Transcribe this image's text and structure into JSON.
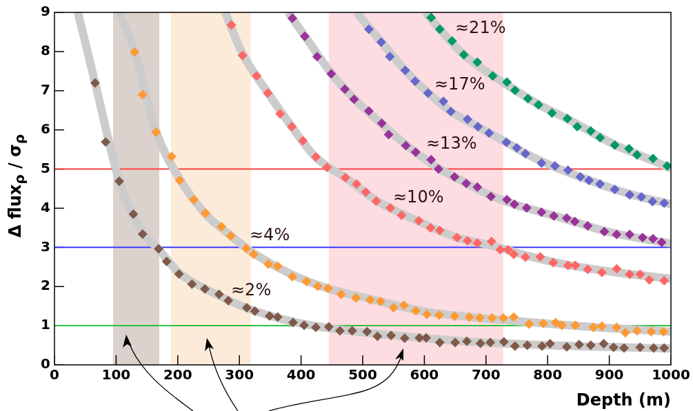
{
  "chart_data": {
    "type": "scatter",
    "xlabel": "Depth (m)",
    "ylabel": "Δ flux$_{ρ}$ / σ$_{ρ}$",
    "xlim": [
      0,
      1000
    ],
    "xticks": [
      0,
      100,
      200,
      300,
      400,
      500,
      600,
      700,
      800,
      900,
      1000
    ],
    "ylim": [
      0,
      9
    ],
    "yticks": [
      0,
      1,
      2,
      3,
      4,
      5,
      6,
      7,
      8,
      9
    ],
    "grid": false,
    "legend": false,
    "marker": "diamond",
    "bands": [
      {
        "axis": "x",
        "from": 95,
        "to": 170,
        "color": "#dbd2cd"
      },
      {
        "axis": "x",
        "from": 189,
        "to": 319,
        "color": "#fdebda"
      },
      {
        "axis": "x",
        "from": 445,
        "to": 728,
        "color": "#fddde1"
      }
    ],
    "ref_lines": [
      {
        "axis": "y",
        "value": 5,
        "color": "#ff4040"
      },
      {
        "axis": "y",
        "value": 3,
        "color": "#3a3aff"
      },
      {
        "axis": "y",
        "value": 1,
        "color": "#30c040"
      }
    ],
    "annotations": [
      "≈2%",
      "≈4%",
      "≈10%",
      "≈13%",
      "≈17%",
      "≈21%"
    ],
    "series": [
      {
        "type": "line",
        "marker": "none",
        "color": "#cccccc",
        "x": [
          38,
          66,
          105,
          143,
          169,
          202,
          244,
          312,
          387,
          463,
          546,
          650,
          770,
          890,
          1000
        ],
        "values": [
          9,
          7.2,
          4.7,
          3.4,
          2.95,
          2.35,
          1.95,
          1.45,
          1.1,
          0.9,
          0.76,
          0.62,
          0.52,
          0.46,
          0.42
        ]
      },
      {
        "type": "line",
        "marker": "none",
        "color": "#cccccc",
        "x": [
          105,
          130,
          165,
          203,
          245,
          286,
          323,
          386,
          444,
          512,
          604,
          690,
          793,
          888,
          1000
        ],
        "values": [
          9,
          8.0,
          5.95,
          4.75,
          3.85,
          3.3,
          2.85,
          2.3,
          1.95,
          1.68,
          1.35,
          1.2,
          1.06,
          0.95,
          0.85
        ]
      },
      {
        "type": "line",
        "marker": "none",
        "color": "#cccccc",
        "x": [
          277,
          305,
          346,
          385,
          424,
          472,
          522,
          591,
          653,
          709,
          764,
          833,
          912,
          1000
        ],
        "values": [
          9,
          7.95,
          6.95,
          6.08,
          5.3,
          4.78,
          4.2,
          3.66,
          3.25,
          3.05,
          2.8,
          2.55,
          2.36,
          2.2
        ]
      },
      {
        "type": "line",
        "marker": "none",
        "color": "#cccccc",
        "x": [
          379,
          406,
          449,
          486,
          531,
          570,
          623,
          668,
          708,
          746,
          790,
          844,
          892,
          954,
          1000
        ],
        "values": [
          9,
          8.4,
          7.45,
          6.8,
          6.15,
          5.62,
          5.02,
          4.64,
          4.32,
          4.1,
          3.9,
          3.65,
          3.42,
          3.22,
          3.1
        ]
      },
      {
        "type": "line",
        "marker": "none",
        "color": "#cccccc",
        "x": [
          490,
          530,
          569,
          606,
          643,
          687,
          733,
          764,
          812,
          853,
          909,
          952,
          1000
        ],
        "values": [
          9,
          8.25,
          7.52,
          6.95,
          6.47,
          6.08,
          5.68,
          5.4,
          5.05,
          4.8,
          4.48,
          4.28,
          4.1
        ]
      },
      {
        "type": "line",
        "marker": "none",
        "color": "#cccccc",
        "x": [
          602,
          625,
          664,
          711,
          747,
          785,
          832,
          870,
          909,
          945,
          1000
        ],
        "values": [
          9,
          8.57,
          7.92,
          7.38,
          7.02,
          6.65,
          6.28,
          5.95,
          5.62,
          5.38,
          5.02
        ]
      },
      {
        "color": "#7f5a4a",
        "x": [
          66,
          83,
          105,
          128,
          143,
          169,
          182,
          202,
          223,
          244,
          267,
          282,
          312,
          325,
          349,
          362,
          387,
          405,
          424,
          445,
          463,
          483,
          507,
          524,
          546,
          568,
          592,
          603,
          625,
          650,
          669,
          691,
          707,
          729,
          747,
          767,
          791,
          804,
          831,
          851,
          870,
          891,
          907,
          924,
          950,
          972,
          989
        ],
        "values": [
          7.2,
          5.69,
          4.69,
          3.85,
          3.34,
          2.96,
          2.64,
          2.32,
          2.06,
          1.94,
          1.8,
          1.64,
          1.46,
          1.37,
          1.25,
          1.22,
          1.08,
          1.01,
          0.96,
          0.97,
          0.87,
          0.87,
          0.85,
          0.73,
          0.75,
          0.68,
          0.69,
          0.69,
          0.57,
          0.57,
          0.6,
          0.55,
          0.57,
          0.59,
          0.48,
          0.5,
          0.48,
          0.54,
          0.46,
          0.52,
          0.5,
          0.54,
          0.45,
          0.43,
          0.45,
          0.43,
          0.43
        ]
      },
      {
        "color": "#ff9933",
        "x": [
          130,
          143,
          165,
          190,
          203,
          226,
          245,
          271,
          286,
          311,
          323,
          347,
          362,
          386,
          409,
          427,
          444,
          465,
          489,
          512,
          529,
          550,
          567,
          586,
          604,
          624,
          649,
          673,
          690,
          710,
          728,
          745,
          770,
          793,
          813,
          823,
          845,
          874,
          888,
          912,
          926,
          945,
          968,
          988
        ],
        "values": [
          7.99,
          6.9,
          5.94,
          5.32,
          4.71,
          4.22,
          3.87,
          3.53,
          3.29,
          2.97,
          2.82,
          2.57,
          2.52,
          2.25,
          2.13,
          2.01,
          1.95,
          1.8,
          1.71,
          1.66,
          1.62,
          1.46,
          1.52,
          1.38,
          1.29,
          1.27,
          1.24,
          1.22,
          1.2,
          1.2,
          1.2,
          1.22,
          1.04,
          1.06,
          1.08,
          1.01,
          1.01,
          0.96,
          0.99,
          0.96,
          0.82,
          0.87,
          0.85,
          0.85
        ]
      },
      {
        "color": "#ff6666",
        "x": [
          287,
          305,
          328,
          346,
          366,
          385,
          403,
          424,
          442,
          472,
          490,
          505,
          522,
          545,
          563,
          591,
          610,
          625,
          653,
          670,
          686,
          709,
          723,
          736,
          745,
          764,
          788,
          809,
          833,
          845,
          865,
          888,
          912,
          933,
          950,
          965,
          989
        ],
        "values": [
          8.68,
          7.9,
          7.38,
          6.94,
          6.41,
          6.08,
          5.72,
          5.31,
          5.04,
          4.78,
          4.62,
          4.41,
          4.18,
          4.01,
          3.82,
          3.68,
          3.5,
          3.43,
          3.25,
          3.17,
          3.11,
          3.15,
          2.94,
          2.94,
          2.82,
          2.75,
          2.76,
          2.61,
          2.54,
          2.54,
          2.44,
          2.36,
          2.45,
          2.31,
          2.31,
          2.17,
          2.15
        ]
      },
      {
        "color": "#993399",
        "x": [
          386,
          406,
          426,
          449,
          471,
          486,
          510,
          531,
          542,
          570,
          586,
          611,
          623,
          649,
          668,
          686,
          708,
          734,
          746,
          766,
          790,
          810,
          831,
          844,
          865,
          892,
          912,
          933,
          954,
          971,
          985
        ],
        "values": [
          8.85,
          8.39,
          7.87,
          7.43,
          7.04,
          6.78,
          6.48,
          6.17,
          5.88,
          5.6,
          5.43,
          5.24,
          5.0,
          4.8,
          4.63,
          4.54,
          4.3,
          4.22,
          4.1,
          4.01,
          3.9,
          3.8,
          3.75,
          3.66,
          3.55,
          3.4,
          3.33,
          3.33,
          3.25,
          3.22,
          3.13
        ]
      },
      {
        "color": "#6666cc",
        "x": [
          510,
          530,
          544,
          569,
          585,
          606,
          631,
          643,
          670,
          687,
          705,
          733,
          750,
          764,
          790,
          812,
          833,
          853,
          867,
          885,
          909,
          933,
          952,
          970,
          989
        ],
        "values": [
          8.57,
          8.24,
          7.87,
          7.52,
          7.24,
          6.94,
          6.73,
          6.47,
          6.27,
          6.08,
          5.92,
          5.68,
          5.54,
          5.39,
          5.15,
          5.08,
          4.97,
          4.8,
          4.71,
          4.62,
          4.48,
          4.34,
          4.29,
          4.17,
          4.13
        ]
      },
      {
        "color": "#009966",
        "x": [
          611,
          625,
          645,
          664,
          686,
          711,
          734,
          747,
          768,
          785,
          807,
          832,
          848,
          870,
          885,
          909,
          932,
          945,
          971,
          994
        ],
        "values": [
          8.87,
          8.57,
          8.27,
          7.92,
          7.73,
          7.38,
          7.22,
          7.01,
          6.8,
          6.64,
          6.43,
          6.29,
          6.08,
          5.97,
          5.8,
          5.61,
          5.52,
          5.36,
          5.27,
          5.08
        ]
      }
    ]
  }
}
